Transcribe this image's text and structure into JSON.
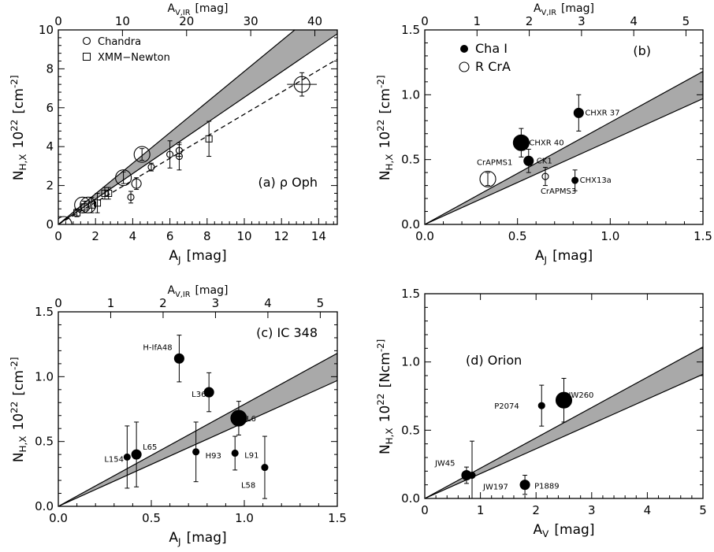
{
  "chart_data": [
    {
      "type": "scatter",
      "panel_label": "(a)",
      "panel_name": "ρ Oph",
      "xlabel": "A_J [mag]",
      "ylabel": "N_H,X 10^22 [cm^-2]",
      "top_xlabel": "A_V,IR [mag]",
      "xlim": [
        0,
        15
      ],
      "ylim": [
        0,
        10
      ],
      "xticks": [
        "0",
        "2",
        "4",
        "6",
        "8",
        "10",
        "12",
        "14"
      ],
      "yticks": [
        "0",
        "2",
        "4",
        "6",
        "8",
        "10"
      ],
      "top_xticks": [
        "0",
        "10",
        "20",
        "30",
        "40"
      ],
      "top_ratio": 2.9,
      "legend": [
        {
          "marker": "circle",
          "label": "Chandra"
        },
        {
          "marker": "square",
          "label": "XMM−Newton"
        }
      ],
      "band": {
        "x_end": 15,
        "lower_y_end": 9.8,
        "upper_y_end": 11.8
      },
      "fit_line": {
        "style": "dashed",
        "points": [
          [
            0,
            0
          ],
          [
            15,
            8.5
          ]
        ]
      },
      "series": [
        {
          "marker": "circle",
          "points": [
            {
              "x": 0.3,
              "y": 0.0,
              "size": "large"
            },
            {
              "x": 1.3,
              "y": 1.0,
              "size": "large"
            },
            {
              "x": 1.6,
              "y": 1.0,
              "size": "large"
            },
            {
              "x": 3.5,
              "y": 2.4,
              "size": "large",
              "err_y": 0.3
            },
            {
              "x": 4.2,
              "y": 2.1,
              "size": "medium",
              "err_y": 0.3
            },
            {
              "x": 4.5,
              "y": 3.6,
              "size": "large",
              "err_y": 0.3
            },
            {
              "x": 3.9,
              "y": 1.4,
              "size": "small",
              "err_y": 0.3
            },
            {
              "x": 5.0,
              "y": 2.95,
              "size": "small",
              "err_y": 0.2
            },
            {
              "x": 6.0,
              "y": 3.6,
              "size": "small",
              "err_y": 0.7
            },
            {
              "x": 6.5,
              "y": 3.5,
              "size": "small",
              "err_y": 0.7
            },
            {
              "x": 6.5,
              "y": 3.8,
              "size": "small",
              "err_y": 0.3
            },
            {
              "x": 13.1,
              "y": 7.2,
              "size": "large",
              "err_x": 0.8,
              "err_y": 0.6
            }
          ]
        },
        {
          "marker": "square",
          "points": [
            {
              "x": 1.0,
              "y": 0.6,
              "err_y": 0.2
            },
            {
              "x": 1.4,
              "y": 0.9,
              "err_y": 0.3
            },
            {
              "x": 1.8,
              "y": 1.0,
              "err_y": 0.4
            },
            {
              "x": 2.1,
              "y": 1.1,
              "err_y": 0.5
            },
            {
              "x": 2.5,
              "y": 1.6,
              "err_y": 0.3
            },
            {
              "x": 2.7,
              "y": 1.6,
              "err_y": 0.3
            },
            {
              "x": 8.1,
              "y": 4.4,
              "err_y": 0.9
            }
          ]
        }
      ]
    },
    {
      "type": "scatter",
      "panel_label": "(b)",
      "xlabel": "A_J [mag]",
      "ylabel": "N_H,X 10^22 [cm^-2]",
      "top_xlabel": "A_V,IR [mag]",
      "xlim": [
        0,
        1.5
      ],
      "ylim": [
        0,
        1.5
      ],
      "xticks": [
        "0.0",
        "0.5",
        "1.0",
        "1.5"
      ],
      "yticks": [
        "0.0",
        "0.5",
        "1.0",
        "1.5"
      ],
      "top_xticks": [
        "0",
        "1",
        "2",
        "3",
        "4",
        "5"
      ],
      "top_ratio": 3.55,
      "legend": [
        {
          "marker": "filled",
          "label": "Cha I"
        },
        {
          "marker": "open",
          "label": "R CrA"
        }
      ],
      "band": {
        "x_end": 1.5,
        "lower_y_end": 0.97,
        "upper_y_end": 1.18
      },
      "points": [
        {
          "label": "CHXR 37",
          "x": 0.83,
          "y": 0.86,
          "filled": true,
          "size": "medium",
          "err_y": 0.14
        },
        {
          "label": "CHXR 40",
          "x": 0.52,
          "y": 0.63,
          "filled": true,
          "size": "large",
          "err_y": 0.11
        },
        {
          "label": "CK1",
          "x": 0.56,
          "y": 0.49,
          "filled": true,
          "size": "medium",
          "err_y": 0.09
        },
        {
          "label": "CHX13a",
          "x": 0.81,
          "y": 0.34,
          "filled": true,
          "size": "small",
          "err_y": 0.08
        },
        {
          "label": "CrAPMS1",
          "x": 0.34,
          "y": 0.35,
          "filled": false,
          "size": "large",
          "err_y": 0.05
        },
        {
          "label": "CrAPMS3",
          "x": 0.65,
          "y": 0.37,
          "filled": false,
          "size": "small",
          "err_y": 0.07
        }
      ]
    },
    {
      "type": "scatter",
      "panel_label": "(c)",
      "panel_name": "IC 348",
      "xlabel": "A_J [mag]",
      "ylabel": "N_H,X 10^22 [cm^-2]",
      "top_xlabel": "A_V,IR [mag]",
      "xlim": [
        0,
        1.5
      ],
      "ylim": [
        0,
        1.5
      ],
      "xticks": [
        "0.0",
        "0.5",
        "1.0",
        "1.5"
      ],
      "yticks": [
        "0.0",
        "0.5",
        "1.0",
        "1.5"
      ],
      "top_xticks": [
        "0",
        "1",
        "2",
        "3",
        "4",
        "5"
      ],
      "top_ratio": 3.55,
      "band": {
        "x_end": 1.5,
        "lower_y_end": 0.97,
        "upper_y_end": 1.18
      },
      "points": [
        {
          "label": "H-IfA48",
          "x": 0.65,
          "y": 1.14,
          "size": "medium",
          "err_y": 0.18
        },
        {
          "label": "L36",
          "x": 0.81,
          "y": 0.88,
          "size": "medium",
          "err_y": 0.15
        },
        {
          "label": "L6",
          "x": 0.97,
          "y": 0.68,
          "size": "large",
          "err_y": 0.13
        },
        {
          "label": "L154",
          "x": 0.37,
          "y": 0.38,
          "size": "small",
          "err_y": 0.24
        },
        {
          "label": "L65",
          "x": 0.42,
          "y": 0.4,
          "size": "medium",
          "err_y": 0.25
        },
        {
          "label": "H93",
          "x": 0.74,
          "y": 0.42,
          "size": "small",
          "err_y": 0.23
        },
        {
          "label": "L91",
          "x": 0.95,
          "y": 0.41,
          "size": "small",
          "err_y": 0.13
        },
        {
          "label": "L58",
          "x": 1.11,
          "y": 0.3,
          "size": "small",
          "err_y": 0.24
        }
      ]
    },
    {
      "type": "scatter",
      "panel_label": "(d)",
      "panel_name": "Orion",
      "xlabel": "A_V [mag]",
      "ylabel": "N_H,X 10^22 [Ncm^-2]",
      "xlim": [
        0,
        5
      ],
      "ylim": [
        0,
        1.5
      ],
      "xticks": [
        "0",
        "1",
        "2",
        "3",
        "4",
        "5"
      ],
      "yticks": [
        "0.0",
        "0.5",
        "1.0",
        "1.5"
      ],
      "band": {
        "x_end": 5,
        "lower_y_end": 0.91,
        "upper_y_end": 1.11
      },
      "points": [
        {
          "label": "JW260",
          "x": 2.5,
          "y": 0.72,
          "size": "large",
          "err_y": 0.16
        },
        {
          "label": "P2074",
          "x": 2.1,
          "y": 0.68,
          "size": "small",
          "err_y": 0.15
        },
        {
          "label": "JW45",
          "x": 0.75,
          "y": 0.17,
          "size": "medium",
          "err_y": 0.06
        },
        {
          "label": "JW197",
          "x": 0.85,
          "y": 0.17,
          "size": "small",
          "err_y": 0.25
        },
        {
          "label": "P1889",
          "x": 1.8,
          "y": 0.1,
          "size": "medium",
          "err_y": 0.07
        }
      ]
    }
  ]
}
